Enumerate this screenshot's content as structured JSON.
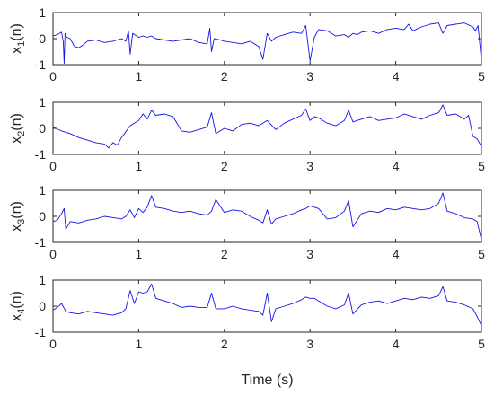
{
  "chart_data": [
    {
      "type": "line",
      "ylabel": "x1(n)",
      "ylabel_base": "x",
      "ylabel_sub": "1",
      "ylabel_tail": "(n)",
      "xlim": [
        0,
        5
      ],
      "ylim": [
        -1,
        1
      ],
      "xticks": [
        "0",
        "1",
        "2",
        "3",
        "4",
        "5"
      ],
      "yticks": [
        "1",
        "0",
        "-1"
      ],
      "color": "#1414e6",
      "grid": false,
      "series": [
        {
          "x": [
            0,
            0.05,
            0.1,
            0.12,
            0.13,
            0.14,
            0.16,
            0.2,
            0.25,
            0.3,
            0.35,
            0.4,
            0.5,
            0.6,
            0.7,
            0.8,
            0.85,
            0.88,
            0.9,
            0.93,
            1.0,
            1.05,
            1.1,
            1.15,
            1.2,
            1.3,
            1.4,
            1.5,
            1.6,
            1.7,
            1.8,
            1.83,
            1.85,
            1.88,
            1.95,
            2.0,
            2.1,
            2.2,
            2.3,
            2.4,
            2.45,
            2.5,
            2.55,
            2.6,
            2.7,
            2.8,
            2.9,
            2.95,
            3.0,
            3.05,
            3.1,
            3.2,
            3.3,
            3.4,
            3.45,
            3.5,
            3.55,
            3.6,
            3.7,
            3.8,
            3.9,
            4.0,
            4.1,
            4.15,
            4.2,
            4.3,
            4.4,
            4.5,
            4.55,
            4.6,
            4.7,
            4.8,
            4.9,
            4.93,
            4.96,
            5.0
          ],
          "y": [
            0.1,
            0.15,
            0.25,
            -0.1,
            -0.95,
            0.2,
            0.05,
            0.0,
            -0.3,
            -0.35,
            -0.25,
            -0.1,
            -0.05,
            -0.15,
            -0.1,
            0.0,
            -0.1,
            0.3,
            -0.6,
            0.2,
            0.05,
            0.1,
            0.05,
            0.1,
            0.0,
            -0.05,
            -0.1,
            -0.05,
            0.0,
            -0.15,
            -0.2,
            0.4,
            -0.5,
            0.0,
            -0.05,
            -0.1,
            -0.15,
            -0.2,
            -0.1,
            -0.3,
            -0.8,
            0.2,
            -0.1,
            0.05,
            0.15,
            0.25,
            0.2,
            0.5,
            -0.85,
            0.05,
            0.35,
            0.3,
            0.1,
            0.15,
            0.05,
            0.2,
            0.15,
            0.25,
            0.3,
            0.2,
            0.35,
            0.4,
            0.35,
            0.55,
            0.3,
            0.45,
            0.55,
            0.6,
            0.2,
            0.5,
            0.55,
            0.6,
            0.45,
            0.3,
            0.5,
            -0.85
          ]
        }
      ]
    },
    {
      "type": "line",
      "ylabel": "x2(n)",
      "ylabel_base": "x",
      "ylabel_sub": "2",
      "ylabel_tail": "(n)",
      "xlim": [
        0,
        5
      ],
      "ylim": [
        -1,
        1
      ],
      "xticks": [
        "0",
        "1",
        "2",
        "3",
        "4",
        "5"
      ],
      "yticks": [
        "1",
        "0",
        "-1"
      ],
      "color": "#1414e6",
      "grid": false,
      "series": [
        {
          "x": [
            0,
            0.1,
            0.2,
            0.3,
            0.4,
            0.5,
            0.6,
            0.65,
            0.7,
            0.75,
            0.8,
            0.9,
            1.0,
            1.05,
            1.1,
            1.15,
            1.2,
            1.3,
            1.4,
            1.5,
            1.6,
            1.7,
            1.8,
            1.85,
            1.9,
            2.0,
            2.1,
            2.2,
            2.3,
            2.4,
            2.5,
            2.6,
            2.7,
            2.8,
            2.9,
            2.95,
            3.0,
            3.05,
            3.1,
            3.2,
            3.3,
            3.4,
            3.45,
            3.5,
            3.6,
            3.7,
            3.8,
            3.9,
            4.0,
            4.1,
            4.2,
            4.3,
            4.4,
            4.5,
            4.55,
            4.6,
            4.7,
            4.8,
            4.85,
            4.9,
            4.95,
            5.0
          ],
          "y": [
            0.05,
            -0.1,
            -0.2,
            -0.35,
            -0.45,
            -0.55,
            -0.6,
            -0.75,
            -0.55,
            -0.65,
            -0.35,
            0.1,
            0.3,
            0.55,
            0.35,
            0.7,
            0.5,
            0.55,
            0.45,
            -0.1,
            -0.15,
            -0.05,
            0.05,
            0.6,
            -0.2,
            0.0,
            -0.1,
            0.15,
            0.2,
            0.1,
            0.3,
            -0.05,
            0.2,
            0.35,
            0.5,
            0.75,
            0.3,
            0.45,
            0.4,
            0.2,
            0.1,
            0.3,
            0.7,
            0.25,
            0.35,
            0.45,
            0.3,
            0.35,
            0.4,
            0.55,
            0.45,
            0.35,
            0.5,
            0.6,
            0.9,
            0.5,
            0.55,
            0.35,
            0.5,
            -0.3,
            -0.4,
            -0.7
          ]
        }
      ]
    },
    {
      "type": "line",
      "ylabel": "x3(n)",
      "ylabel_base": "x",
      "ylabel_sub": "3",
      "ylabel_tail": "(n)",
      "xlim": [
        0,
        5
      ],
      "ylim": [
        -1,
        1
      ],
      "xticks": [
        "0",
        "1",
        "2",
        "3",
        "4",
        "5"
      ],
      "yticks": [
        "1",
        "0",
        "-1"
      ],
      "color": "#1414e6",
      "grid": false,
      "series": [
        {
          "x": [
            0,
            0.05,
            0.1,
            0.13,
            0.15,
            0.2,
            0.3,
            0.4,
            0.5,
            0.6,
            0.7,
            0.8,
            0.85,
            0.9,
            0.95,
            1.0,
            1.05,
            1.1,
            1.15,
            1.2,
            1.3,
            1.4,
            1.5,
            1.6,
            1.7,
            1.8,
            1.85,
            1.9,
            2.0,
            2.1,
            2.2,
            2.3,
            2.4,
            2.45,
            2.5,
            2.55,
            2.6,
            2.7,
            2.8,
            2.9,
            2.95,
            3.0,
            3.05,
            3.1,
            3.2,
            3.3,
            3.4,
            3.45,
            3.5,
            3.6,
            3.7,
            3.8,
            3.9,
            4.0,
            4.1,
            4.2,
            4.3,
            4.4,
            4.5,
            4.55,
            4.6,
            4.7,
            4.8,
            4.9,
            4.95,
            5.0
          ],
          "y": [
            -0.2,
            -0.15,
            0.1,
            0.3,
            -0.5,
            -0.2,
            -0.25,
            -0.15,
            -0.1,
            0.0,
            -0.05,
            -0.1,
            0.0,
            0.25,
            -0.05,
            0.3,
            0.15,
            0.35,
            0.8,
            0.35,
            0.3,
            0.2,
            0.15,
            0.2,
            0.1,
            0.05,
            0.2,
            0.65,
            0.15,
            0.25,
            0.2,
            0.0,
            -0.15,
            -0.25,
            0.25,
            -0.3,
            -0.1,
            0.0,
            0.1,
            0.25,
            0.3,
            0.4,
            0.35,
            0.3,
            -0.1,
            -0.05,
            0.2,
            0.6,
            -0.4,
            0.1,
            0.2,
            0.15,
            0.3,
            0.25,
            0.35,
            0.3,
            0.25,
            0.3,
            0.5,
            0.9,
            0.2,
            0.1,
            -0.05,
            -0.1,
            -0.2,
            -0.9
          ]
        }
      ]
    },
    {
      "type": "line",
      "ylabel": "x4(n)",
      "ylabel_base": "x",
      "ylabel_sub": "4",
      "ylabel_tail": "(n)",
      "xlim": [
        0,
        5
      ],
      "ylim": [
        -1,
        1
      ],
      "xticks": [
        "0",
        "1",
        "2",
        "3",
        "4",
        "5"
      ],
      "yticks": [
        "1",
        "0",
        "-1"
      ],
      "color": "#1414e6",
      "grid": false,
      "series": [
        {
          "x": [
            0,
            0.05,
            0.1,
            0.15,
            0.2,
            0.3,
            0.4,
            0.5,
            0.6,
            0.7,
            0.8,
            0.85,
            0.9,
            0.95,
            1.0,
            1.05,
            1.1,
            1.15,
            1.2,
            1.3,
            1.4,
            1.5,
            1.6,
            1.7,
            1.8,
            1.85,
            1.9,
            2.0,
            2.1,
            2.2,
            2.3,
            2.4,
            2.45,
            2.5,
            2.55,
            2.6,
            2.7,
            2.8,
            2.9,
            2.95,
            3.0,
            3.05,
            3.1,
            3.2,
            3.3,
            3.4,
            3.45,
            3.5,
            3.6,
            3.7,
            3.8,
            3.9,
            4.0,
            4.1,
            4.2,
            4.3,
            4.4,
            4.5,
            4.55,
            4.6,
            4.7,
            4.8,
            4.9,
            4.95,
            5.0
          ],
          "y": [
            -0.15,
            -0.05,
            0.1,
            -0.2,
            -0.25,
            -0.3,
            -0.2,
            -0.25,
            -0.3,
            -0.35,
            -0.25,
            -0.1,
            0.6,
            0.1,
            0.55,
            0.5,
            0.55,
            0.85,
            0.3,
            0.2,
            0.1,
            -0.05,
            0.0,
            -0.05,
            -0.05,
            0.5,
            -0.1,
            -0.1,
            0.0,
            -0.1,
            -0.15,
            -0.2,
            -0.35,
            0.5,
            -0.6,
            -0.1,
            0.0,
            0.1,
            0.25,
            0.35,
            0.3,
            0.3,
            0.2,
            0.0,
            -0.1,
            0.05,
            0.5,
            -0.3,
            0.05,
            0.15,
            0.2,
            0.1,
            0.2,
            0.3,
            0.25,
            0.35,
            0.3,
            0.4,
            0.75,
            0.2,
            0.15,
            0.05,
            -0.1,
            -0.4,
            -0.75
          ]
        }
      ]
    }
  ],
  "xlabel": "Time (s)"
}
